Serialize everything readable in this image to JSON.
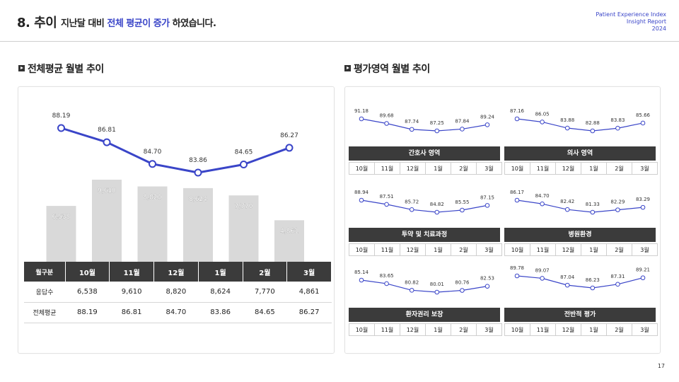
{
  "header": {
    "title": "8. 추이",
    "subtitle_before": "지난달 대비 ",
    "subtitle_highlight": "전체 평균이 증가",
    "subtitle_after": " 하였습니다.",
    "report_line1": "Patient Experience Index",
    "report_line2": "Insight Report",
    "report_line3": "2024"
  },
  "left_section": {
    "title": "전체평균 월별 추이"
  },
  "right_section": {
    "title": "평가영역 월별 추이"
  },
  "table": {
    "headers": [
      "월구분",
      "10월",
      "11월",
      "12월",
      "1월",
      "2월",
      "3월"
    ],
    "rows": [
      [
        "응답수",
        "6,538",
        "9,610",
        "8,820",
        "8,624",
        "7,770",
        "4,861"
      ],
      [
        "전체평균",
        "88.19",
        "86.81",
        "84.70",
        "83.86",
        "84.65",
        "86.27"
      ]
    ]
  },
  "chart_data": [
    {
      "type": "bar+line",
      "title": "전체평균 월별 추이",
      "categories": [
        "10월",
        "11월",
        "12월",
        "1월",
        "2월",
        "3월"
      ],
      "series": [
        {
          "name": "응답수",
          "type": "bar",
          "values": [
            6538,
            9610,
            8820,
            8624,
            7770,
            4861
          ],
          "labels": [
            "6,538",
            "9,610",
            "8,820",
            "8,624",
            "7,770",
            "4,861"
          ],
          "color": "#d9d9d9"
        },
        {
          "name": "전체평균",
          "type": "line",
          "values": [
            88.19,
            86.81,
            84.7,
            83.86,
            84.65,
            86.27
          ],
          "labels": [
            "88.19",
            "86.81",
            "84.70",
            "83.86",
            "84.65",
            "86.27"
          ],
          "color": "#3a45c8"
        }
      ]
    },
    {
      "type": "line",
      "title": "간호사 영역",
      "categories": [
        "10월",
        "11월",
        "12월",
        "1월",
        "2월",
        "3월"
      ],
      "values": [
        91.18,
        89.68,
        87.74,
        87.25,
        87.84,
        89.24
      ],
      "labels": [
        "91.18",
        "89.68",
        "87.74",
        "87.25",
        "87.84",
        "89.24"
      ],
      "color": "#3a45c8"
    },
    {
      "type": "line",
      "title": "의사 영역",
      "categories": [
        "10월",
        "11월",
        "12월",
        "1월",
        "2월",
        "3월"
      ],
      "values": [
        87.16,
        86.05,
        83.88,
        82.88,
        83.83,
        85.66
      ],
      "labels": [
        "87.16",
        "86.05",
        "83.88",
        "82.88",
        "83.83",
        "85.66"
      ],
      "color": "#3a45c8"
    },
    {
      "type": "line",
      "title": "투약 및 치료과정",
      "categories": [
        "10월",
        "11월",
        "12월",
        "1월",
        "2월",
        "3월"
      ],
      "values": [
        88.94,
        87.51,
        85.72,
        84.82,
        85.55,
        87.15
      ],
      "labels": [
        "88.94",
        "87.51",
        "85.72",
        "84.82",
        "85.55",
        "87.15"
      ],
      "color": "#3a45c8"
    },
    {
      "type": "line",
      "title": "병원환경",
      "categories": [
        "10월",
        "11월",
        "12월",
        "1월",
        "2월",
        "3월"
      ],
      "values": [
        86.17,
        84.7,
        82.42,
        81.33,
        82.29,
        83.29
      ],
      "labels": [
        "86.17",
        "84.70",
        "82.42",
        "81.33",
        "82.29",
        "83.29"
      ],
      "color": "#3a45c8"
    },
    {
      "type": "line",
      "title": "환자권리 보장",
      "categories": [
        "10월",
        "11월",
        "12월",
        "1월",
        "2월",
        "3월"
      ],
      "values": [
        85.14,
        83.65,
        80.82,
        80.01,
        80.76,
        82.53
      ],
      "labels": [
        "85.14",
        "83.65",
        "80.82",
        "80.01",
        "80.76",
        "82.53"
      ],
      "color": "#3a45c8"
    },
    {
      "type": "line",
      "title": "전반적 평가",
      "categories": [
        "10월",
        "11월",
        "12월",
        "1월",
        "2월",
        "3월"
      ],
      "values": [
        89.78,
        89.07,
        87.04,
        86.23,
        87.31,
        89.21
      ],
      "labels": [
        "89.78",
        "89.07",
        "87.04",
        "86.23",
        "87.31",
        "89.21"
      ],
      "color": "#3a45c8"
    }
  ],
  "page_number": "17"
}
